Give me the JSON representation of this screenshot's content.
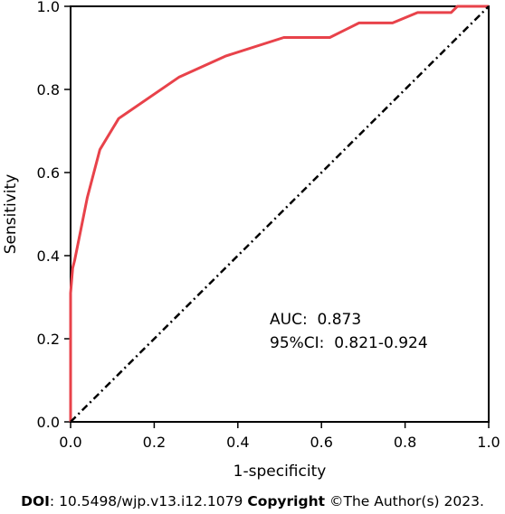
{
  "chart_data": {
    "type": "line",
    "xlabel": "1-specificity",
    "ylabel": "Sensitivity",
    "xlim": [
      0,
      1
    ],
    "ylim": [
      0,
      1
    ],
    "xticks": [
      "0.0",
      "0.2",
      "0.4",
      "0.6",
      "0.8",
      "1.0"
    ],
    "yticks": [
      "0.0",
      "0.2",
      "0.4",
      "0.6",
      "0.8",
      "1.0"
    ],
    "grid": false,
    "series": [
      {
        "style": "solid",
        "color": "#e8424a",
        "x": [
          0,
          0,
          0.005,
          0.01,
          0.02,
          0.04,
          0.07,
          0.115,
          0.26,
          0.37,
          0.51,
          0.62,
          0.69,
          0.77,
          0.83,
          0.91,
          0.925,
          1.0
        ],
        "y": [
          0,
          0.31,
          0.37,
          0.39,
          0.44,
          0.54,
          0.655,
          0.73,
          0.83,
          0.88,
          0.925,
          0.925,
          0.96,
          0.96,
          0.985,
          0.985,
          1.0,
          1.0
        ]
      },
      {
        "style": "dash-dot",
        "color": "#000000",
        "x": [
          0,
          1
        ],
        "y": [
          0,
          1
        ]
      }
    ],
    "annotations": [
      "AUC:  0.873",
      "95%CI:  0.821-0.924"
    ]
  },
  "footer": {
    "doi_label": "DOI",
    "doi_value": ": 10.5498/wjp.v13.i12.1079",
    "copyright_label": "Copyright",
    "copyright_value": " ©The Author(s) 2023."
  }
}
